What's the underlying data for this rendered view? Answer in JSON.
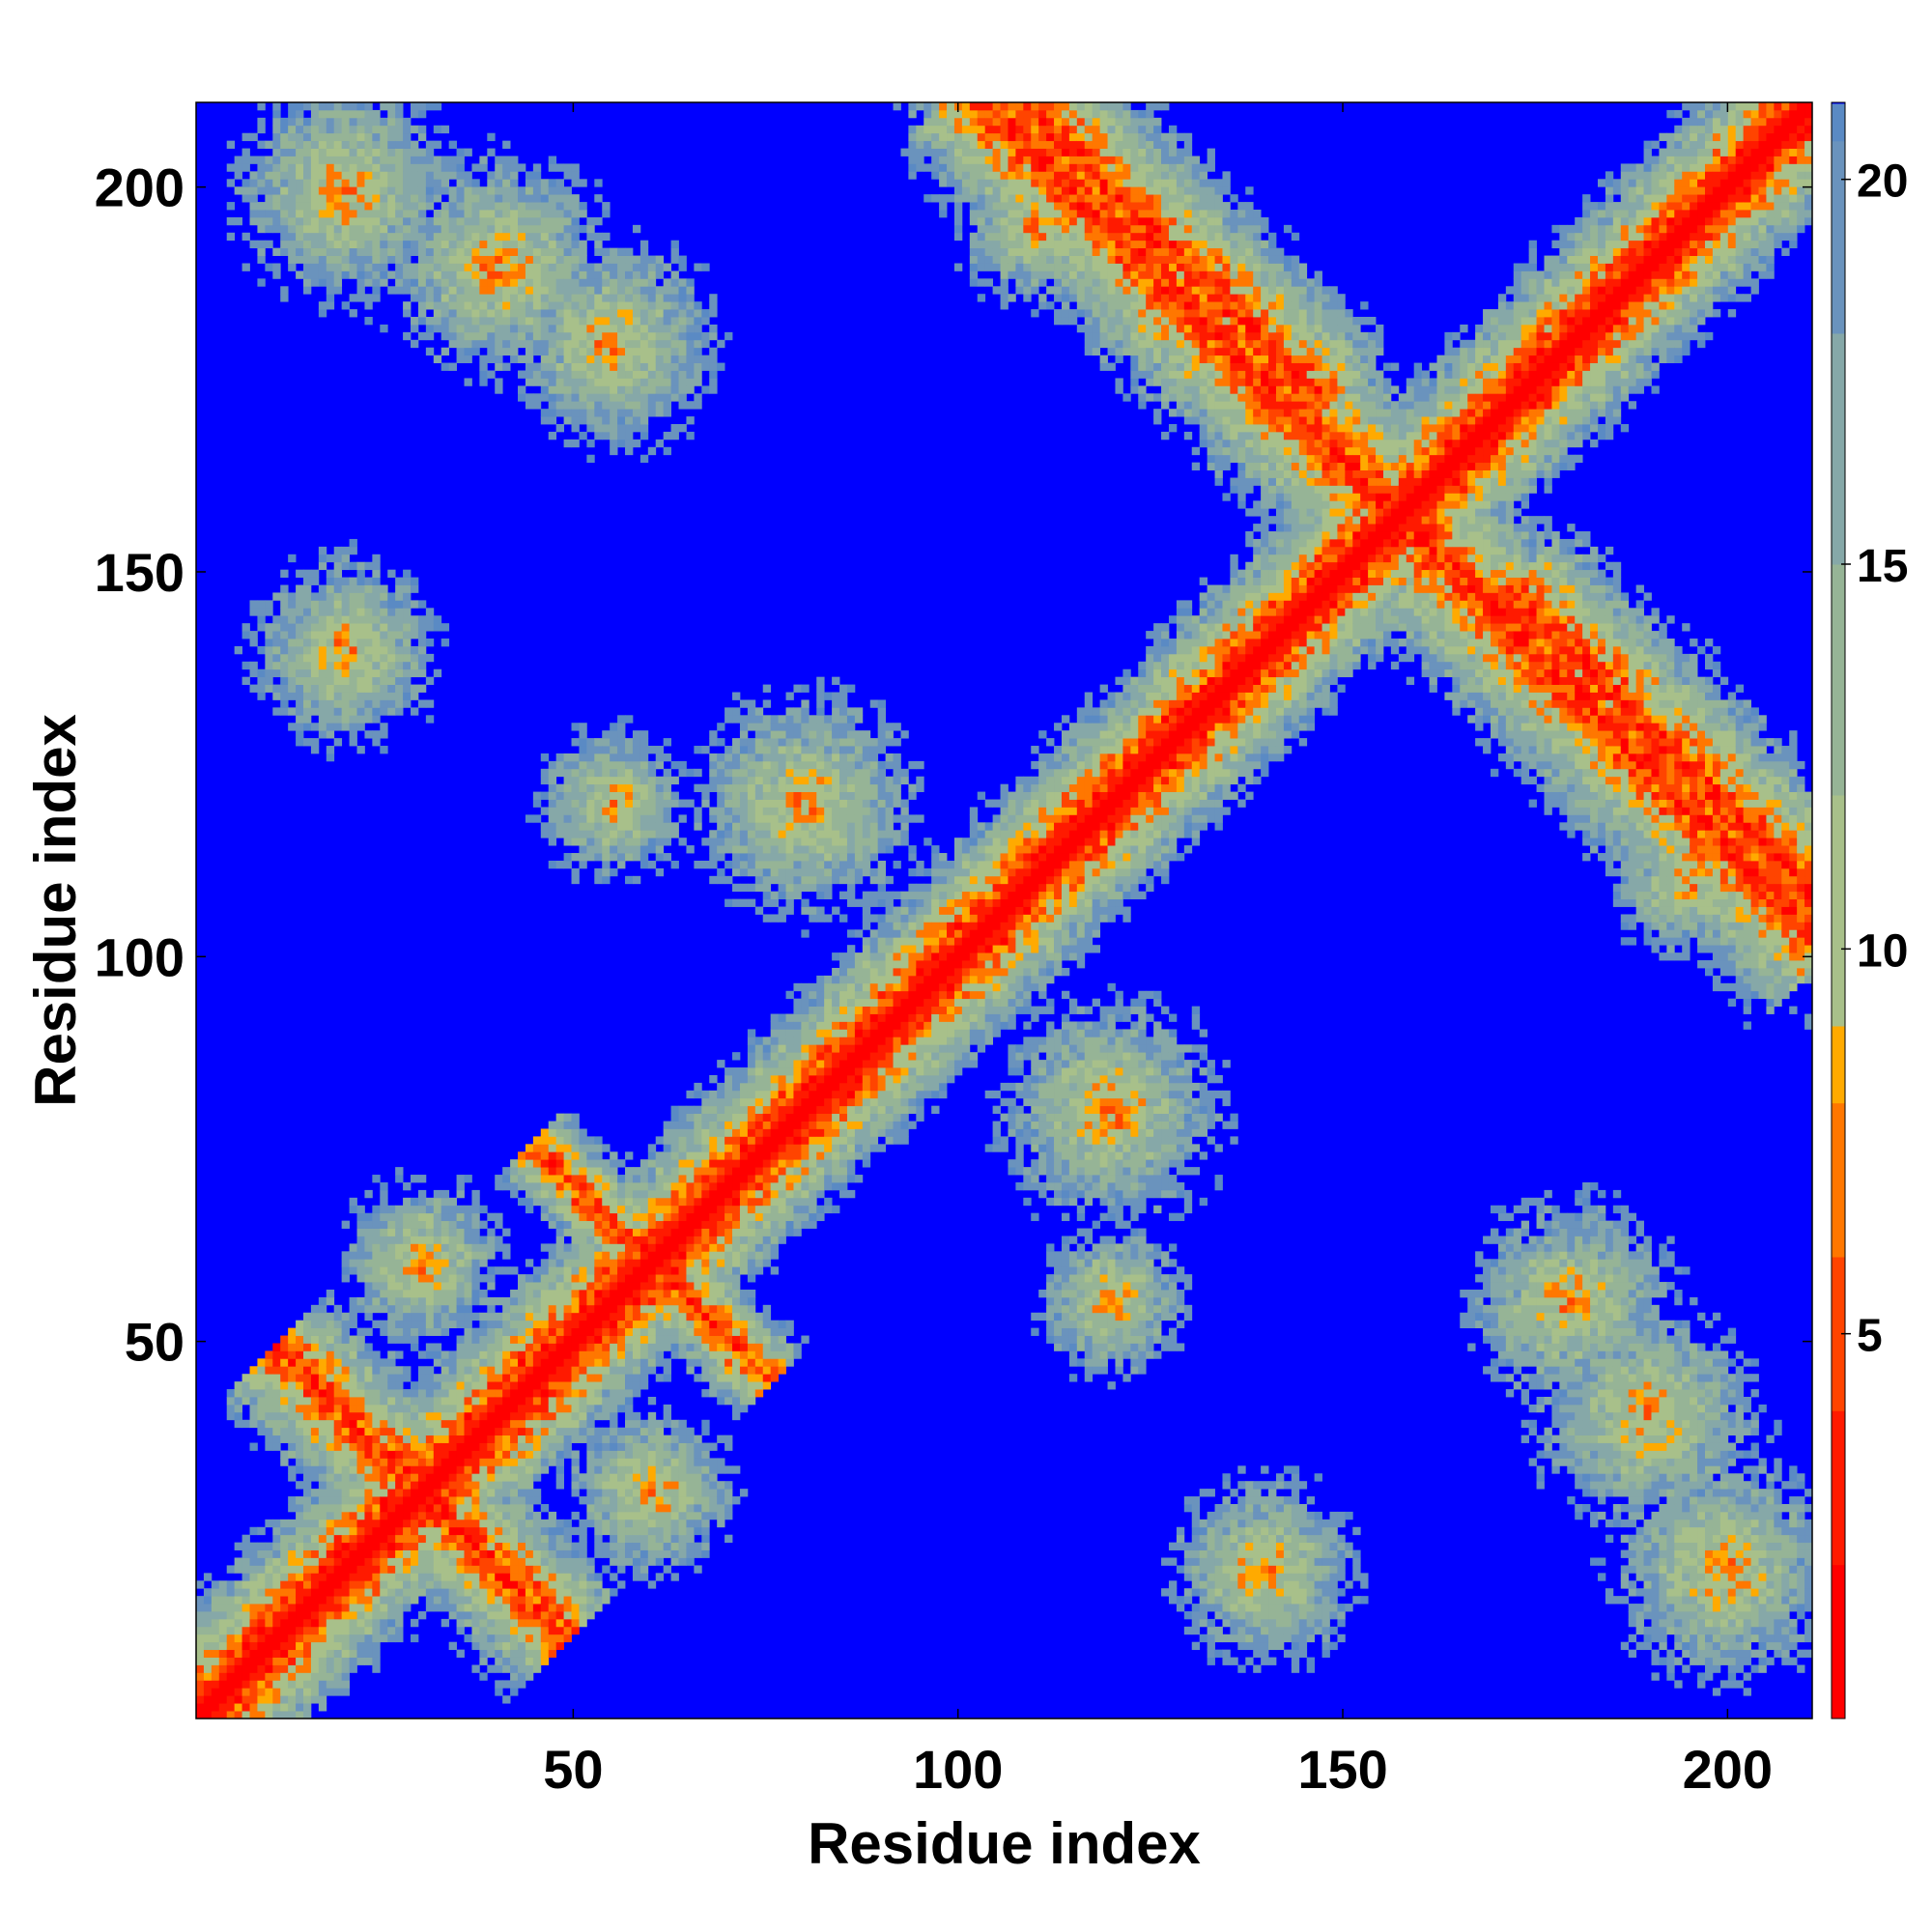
{
  "chart_data": {
    "type": "heatmap",
    "title": "",
    "xlabel": "Residue index",
    "ylabel": "Residue index",
    "n_residues": 211,
    "xlim": [
      1,
      211
    ],
    "ylim": [
      1,
      211
    ],
    "x_ticks": [
      50,
      100,
      150,
      200
    ],
    "y_ticks": [
      50,
      100,
      150,
      200
    ],
    "x_tick_labels": [
      "50",
      "100",
      "150",
      "200"
    ],
    "y_tick_labels": [
      "50",
      "100",
      "150",
      "200"
    ],
    "value_range": [
      0,
      21
    ],
    "colorbar": {
      "ticks": [
        5,
        10,
        15,
        20
      ],
      "tick_labels": [
        "5",
        "10",
        "15",
        "20"
      ],
      "color_stops": [
        {
          "value": 0,
          "color": "#ff0000"
        },
        {
          "value": 2,
          "color": "#ff1a00"
        },
        {
          "value": 4,
          "color": "#ff4400"
        },
        {
          "value": 6,
          "color": "#ff7700"
        },
        {
          "value": 8,
          "color": "#ffaa00"
        },
        {
          "value": 9,
          "color": "#a8c08a"
        },
        {
          "value": 12,
          "color": "#96b496"
        },
        {
          "value": 15,
          "color": "#86a8a8"
        },
        {
          "value": 18,
          "color": "#6a93bd"
        },
        {
          "value": 20.5,
          "color": "#5a8ac4"
        },
        {
          "value": 21,
          "color": "#0000ff"
        }
      ]
    },
    "features": [
      {
        "kind": "diagonal",
        "description": "main diagonal, distance ~0"
      },
      {
        "kind": "band",
        "center": [
          165,
          150
        ],
        "direction": "anti",
        "length": 120,
        "description": "antiparallel contact band"
      },
      {
        "kind": "band",
        "center": [
          150,
          165
        ],
        "direction": "anti",
        "length": 120,
        "description": "symmetric band"
      },
      {
        "kind": "band",
        "center": [
          60,
          60
        ],
        "direction": "anti",
        "length": 40,
        "description": "hairpin region"
      },
      {
        "kind": "blob",
        "center": [
          120,
          80
        ],
        "description": "contact cluster"
      },
      {
        "kind": "blob",
        "center": [
          80,
          120
        ],
        "description": "contact cluster"
      },
      {
        "kind": "blob",
        "center": [
          190,
          40
        ],
        "description": "contact cluster"
      },
      {
        "kind": "blob",
        "center": [
          40,
          190
        ],
        "description": "contact cluster"
      },
      {
        "kind": "blob",
        "center": [
          180,
          55
        ],
        "description": "contact cluster"
      },
      {
        "kind": "blob",
        "center": [
          55,
          180
        ],
        "description": "contact cluster"
      },
      {
        "kind": "blob",
        "center": [
          20,
          200
        ],
        "description": "contact cluster"
      },
      {
        "kind": "blob",
        "center": [
          200,
          20
        ],
        "description": "contact cluster"
      }
    ]
  }
}
